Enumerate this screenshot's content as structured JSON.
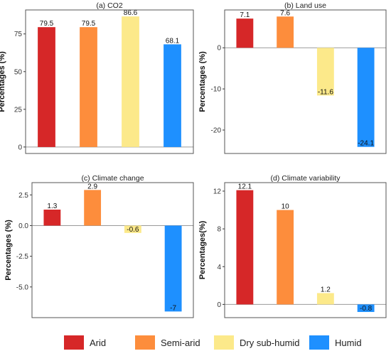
{
  "colors": {
    "arid": "#d62728",
    "semi_arid": "#fd8d3c",
    "dry_sub_humid": "#fce98a",
    "humid": "#1e90ff",
    "panel_border": "#555555",
    "zero_line": "#9a9a9a"
  },
  "legend": {
    "items": [
      {
        "label": "Arid",
        "color": "#d62728"
      },
      {
        "label": "Semi-arid",
        "color": "#fd8d3c"
      },
      {
        "label": "Dry sub-humid",
        "color": "#fce98a"
      },
      {
        "label": "Humid",
        "color": "#1e90ff"
      }
    ]
  },
  "chart_data": [
    {
      "type": "bar",
      "title": "(a) CO2",
      "ylabel": "Percentages (%)",
      "xlabel": "",
      "categories": [
        "Arid",
        "Semi-arid",
        "Dry sub-humid",
        "Humid"
      ],
      "values": [
        79.5,
        79.5,
        86.6,
        68.1
      ],
      "value_labels": [
        "79.5",
        "79.5",
        "86.6",
        "68.1"
      ],
      "yticks": [
        0,
        25,
        50,
        75
      ],
      "ylim": [
        -4.3,
        90.9
      ],
      "grid": false
    },
    {
      "type": "bar",
      "title": "(b) Land use",
      "ylabel": "Percentages (%)",
      "xlabel": "",
      "categories": [
        "Arid",
        "Semi-arid",
        "Dry sub-humid",
        "Humid"
      ],
      "values": [
        7.1,
        7.6,
        -11.6,
        -24.1
      ],
      "value_labels": [
        "7.1",
        "7.6",
        "-11.6",
        "-24.1"
      ],
      "yticks": [
        -20,
        -10,
        0
      ],
      "ylim": [
        -25.7,
        9.2
      ],
      "grid": false
    },
    {
      "type": "bar",
      "title": "(c) Climate change",
      "ylabel": "Percentages (%)",
      "xlabel": "",
      "categories": [
        "Arid",
        "Semi-arid",
        "Dry sub-humid",
        "Humid"
      ],
      "values": [
        1.3,
        2.9,
        -0.6,
        -7
      ],
      "value_labels": [
        "1.3",
        "2.9",
        "-0.6",
        "-7"
      ],
      "yticks": [
        -5.0,
        -2.5,
        0.0,
        2.5
      ],
      "ytick_labels": [
        "-5.0",
        "-2.5",
        "0.0",
        "2.5"
      ],
      "ylim": [
        -7.5,
        3.5
      ],
      "grid": false
    },
    {
      "type": "bar",
      "title": "(d) Climate variability",
      "ylabel": "Percentages(%)",
      "xlabel": "",
      "categories": [
        "Arid",
        "Semi-arid",
        "Dry sub-humid",
        "Humid"
      ],
      "values": [
        12.1,
        10,
        1.2,
        -0.8
      ],
      "value_labels": [
        "12.1",
        "10",
        "1.2",
        "-0.8"
      ],
      "yticks": [
        0,
        4,
        8,
        12
      ],
      "ylim": [
        -1.4,
        12.9
      ],
      "grid": false
    }
  ]
}
